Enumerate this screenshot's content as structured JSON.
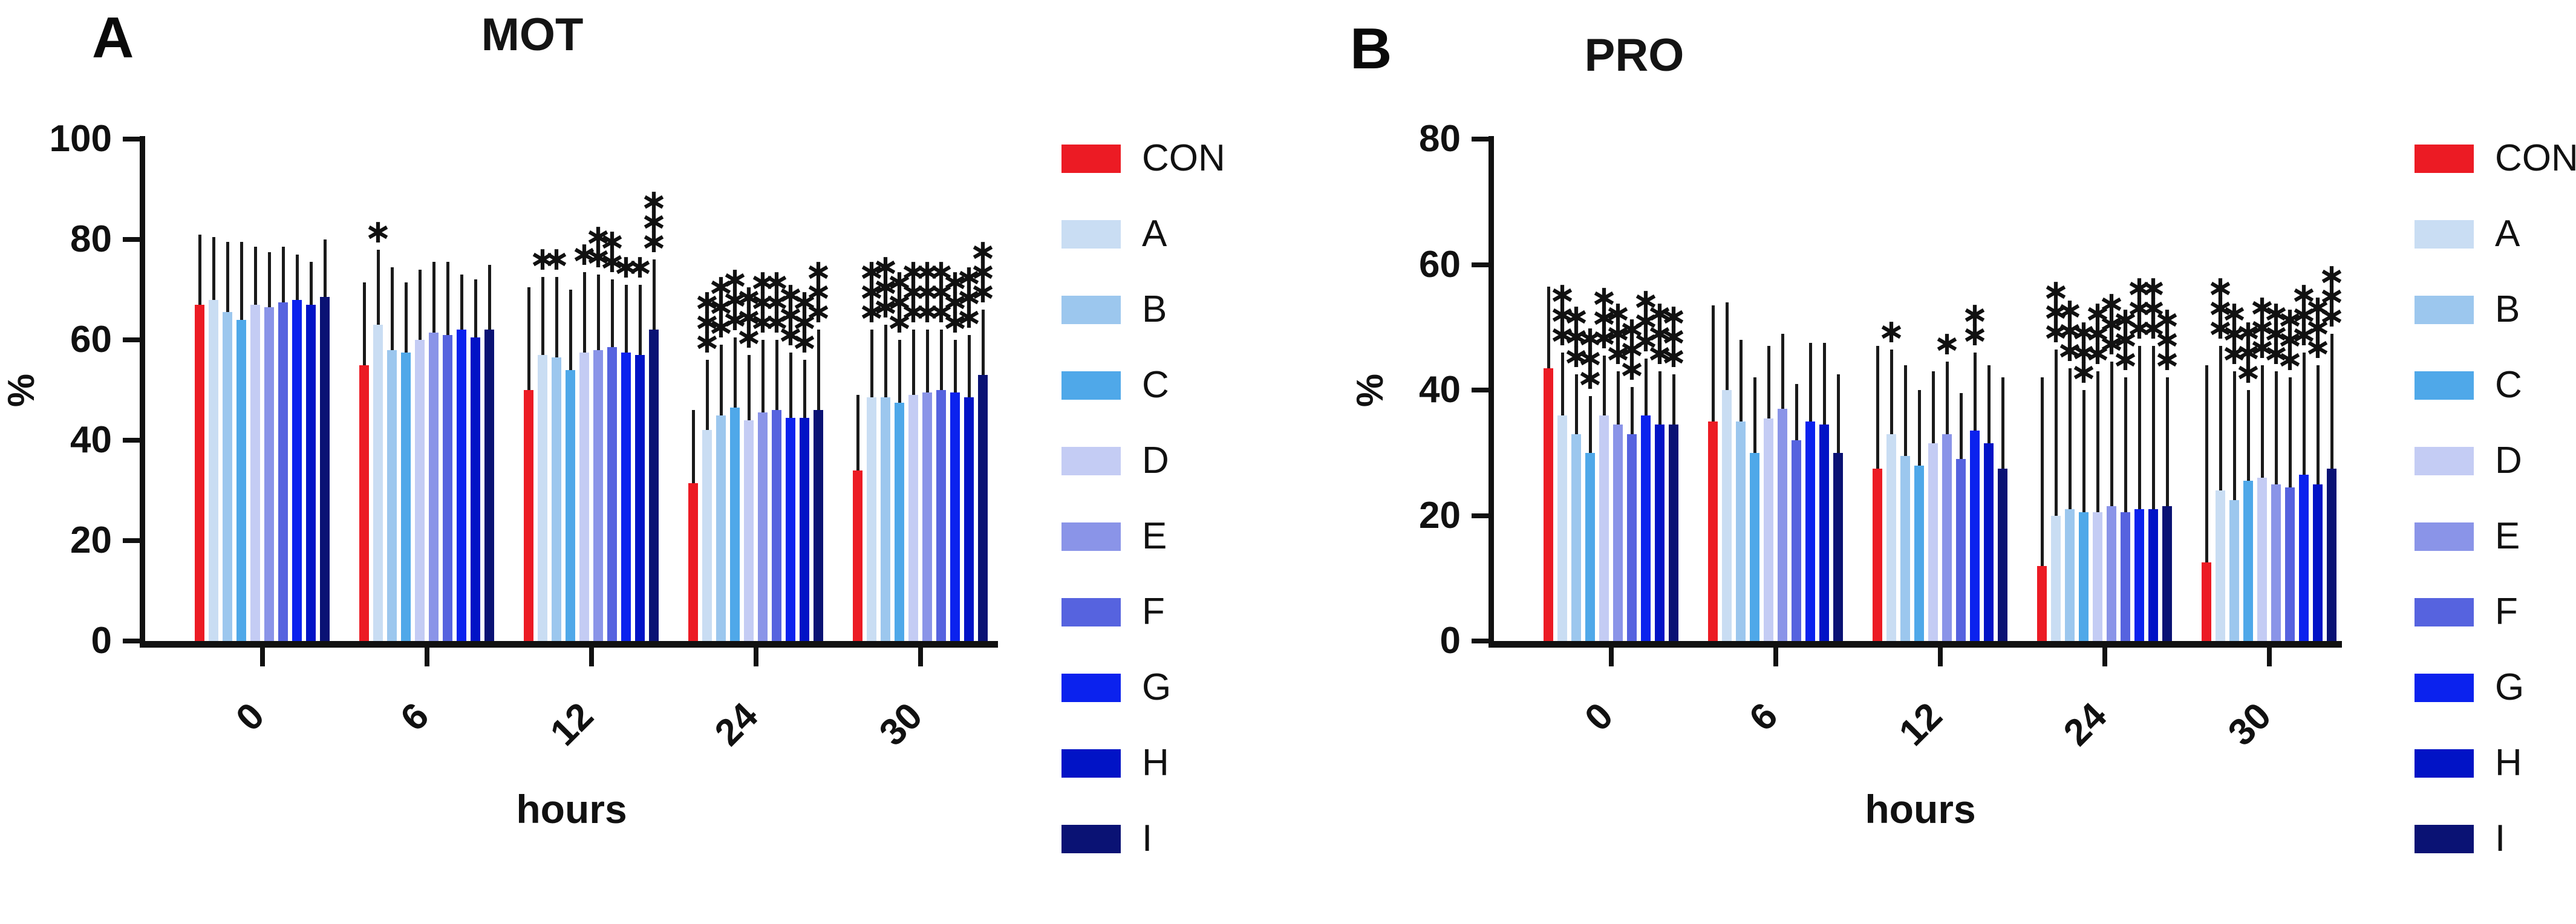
{
  "chart_data": [
    {
      "type": "bar",
      "panel_label": "A",
      "title": "MOT",
      "ylabel": "%",
      "xlabel": "hours",
      "ylim": [
        0,
        100
      ],
      "yticks": [
        0,
        20,
        40,
        60,
        80,
        100
      ],
      "grid": false,
      "legend_position": "right",
      "categories": [
        "0",
        "6",
        "12",
        "24",
        "30"
      ],
      "series": [
        {
          "name": "CON",
          "color": "#EC1B24",
          "values": [
            67,
            55,
            50,
            31.5,
            34
          ],
          "err": [
            81,
            71.5,
            70.5,
            46,
            49
          ],
          "sig": [
            "",
            "",
            "",
            "",
            ""
          ]
        },
        {
          "name": "A",
          "color": "#C9DDF3",
          "values": [
            68,
            63,
            57,
            42,
            48.5
          ],
          "err": [
            80.5,
            78,
            72.5,
            56,
            62
          ],
          "sig": [
            "",
            "*",
            "*",
            "***",
            "***"
          ]
        },
        {
          "name": "B",
          "color": "#9CC7EE",
          "values": [
            65.5,
            58,
            56.5,
            45,
            48.5
          ],
          "err": [
            79.5,
            74.5,
            72.5,
            59,
            63
          ],
          "sig": [
            "",
            "",
            "*",
            "***",
            "***"
          ]
        },
        {
          "name": "C",
          "color": "#4FA8E9",
          "values": [
            64,
            57.5,
            54,
            46.5,
            47.5
          ],
          "err": [
            79.5,
            71.5,
            70,
            60.5,
            60
          ],
          "sig": [
            "",
            "",
            "",
            "***",
            "***"
          ]
        },
        {
          "name": "D",
          "color": "#C4CCF4",
          "values": [
            67,
            60,
            57.5,
            44,
            49
          ],
          "err": [
            78.5,
            74,
            73.5,
            57,
            62
          ],
          "sig": [
            "",
            "",
            "*",
            "***",
            "***"
          ]
        },
        {
          "name": "E",
          "color": "#8A94E8",
          "values": [
            66.5,
            61.5,
            58,
            45.5,
            49.5
          ],
          "err": [
            77.5,
            75.5,
            73,
            60,
            62
          ],
          "sig": [
            "",
            "",
            "**",
            "***",
            "***"
          ]
        },
        {
          "name": "F",
          "color": "#5663DF",
          "values": [
            67.5,
            61,
            58.5,
            46,
            50
          ],
          "err": [
            78.5,
            75.5,
            72,
            60,
            62
          ],
          "sig": [
            "",
            "",
            "**",
            "***",
            "***"
          ]
        },
        {
          "name": "G",
          "color": "#0B22EE",
          "values": [
            68,
            62,
            57.5,
            44.5,
            49.5
          ],
          "err": [
            77,
            73,
            71,
            57.5,
            60
          ],
          "sig": [
            "",
            "",
            "*",
            "***",
            "***"
          ]
        },
        {
          "name": "H",
          "color": "#0113C6",
          "values": [
            67,
            60.5,
            57,
            44.5,
            48.5
          ],
          "err": [
            75.5,
            72,
            71,
            56,
            61
          ],
          "sig": [
            "",
            "",
            "*",
            "***",
            "***"
          ]
        },
        {
          "name": "I",
          "color": "#0A1274",
          "values": [
            68.5,
            62,
            62,
            46,
            53
          ],
          "err": [
            80,
            75,
            76,
            62,
            66
          ],
          "sig": [
            "",
            "",
            "***",
            "***",
            "***"
          ]
        }
      ]
    },
    {
      "type": "bar",
      "panel_label": "B",
      "title": "PRO",
      "ylabel": "%",
      "xlabel": "hours",
      "ylim": [
        0,
        80
      ],
      "yticks": [
        0,
        20,
        40,
        60,
        80
      ],
      "grid": false,
      "legend_position": "right",
      "categories": [
        "0",
        "6",
        "12",
        "24",
        "30"
      ],
      "series": [
        {
          "name": "CON",
          "color": "#EC1B24",
          "values": [
            43.5,
            35,
            27.5,
            12,
            12.5
          ],
          "err": [
            56.5,
            53.5,
            47,
            42,
            44
          ],
          "sig": [
            "",
            "",
            "",
            "",
            ""
          ]
        },
        {
          "name": "A",
          "color": "#C9DDF3",
          "values": [
            36,
            40,
            33,
            20,
            24
          ],
          "err": [
            46,
            54,
            46.5,
            46.5,
            47
          ],
          "sig": [
            "***",
            "",
            "*",
            "***",
            "***"
          ]
        },
        {
          "name": "B",
          "color": "#9CC7EE",
          "values": [
            33,
            35,
            29.5,
            21,
            22.5
          ],
          "err": [
            42.5,
            48,
            44,
            43.5,
            43
          ],
          "sig": [
            "***",
            "",
            "",
            "***",
            "***"
          ]
        },
        {
          "name": "C",
          "color": "#4FA8E9",
          "values": [
            30,
            30,
            28,
            20.5,
            25.5
          ],
          "err": [
            39,
            42,
            40,
            40,
            40
          ],
          "sig": [
            "***",
            "",
            "",
            "***",
            "***"
          ]
        },
        {
          "name": "D",
          "color": "#C4CCF4",
          "values": [
            36,
            35.5,
            31.5,
            20.5,
            26
          ],
          "err": [
            45.5,
            47,
            43,
            43,
            44
          ],
          "sig": [
            "***",
            "",
            "",
            "***",
            "***"
          ]
        },
        {
          "name": "E",
          "color": "#8A94E8",
          "values": [
            34.5,
            37,
            33,
            21.5,
            25
          ],
          "err": [
            43,
            49,
            44.5,
            44.5,
            43
          ],
          "sig": [
            "***",
            "",
            "*",
            "***",
            "***"
          ]
        },
        {
          "name": "F",
          "color": "#5663DF",
          "values": [
            33,
            32,
            29,
            20.5,
            24.5
          ],
          "err": [
            40.5,
            41,
            39.5,
            42,
            42
          ],
          "sig": [
            "***",
            "",
            "",
            "***",
            "***"
          ]
        },
        {
          "name": "G",
          "color": "#0B22EE",
          "values": [
            36,
            35,
            33.5,
            21,
            26.5
          ],
          "err": [
            45,
            47.5,
            46,
            47,
            46
          ],
          "sig": [
            "***",
            "",
            "**",
            "***",
            "***"
          ]
        },
        {
          "name": "H",
          "color": "#0113C6",
          "values": [
            34.5,
            34.5,
            31.5,
            21,
            25
          ],
          "err": [
            43,
            47.5,
            44,
            47,
            44
          ],
          "sig": [
            "***",
            "",
            "",
            "***",
            "***"
          ]
        },
        {
          "name": "I",
          "color": "#0A1274",
          "values": [
            34.5,
            30,
            27.5,
            21.5,
            27.5
          ],
          "err": [
            42.5,
            42.5,
            42,
            42,
            49
          ],
          "sig": [
            "***",
            "",
            "",
            "***",
            "***"
          ]
        }
      ]
    }
  ],
  "legend_labels": [
    "CON",
    "A",
    "B",
    "C",
    "D",
    "E",
    "F",
    "G",
    "H",
    "I"
  ]
}
